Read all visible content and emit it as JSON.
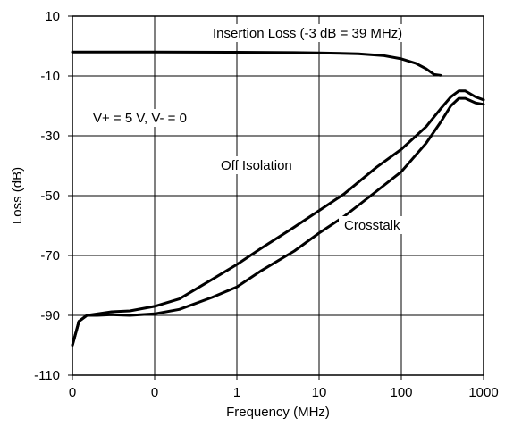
{
  "chart_data": {
    "type": "line",
    "title": "",
    "xlabel": "Frequency (MHz)",
    "ylabel": "Loss (dB)",
    "x_scale": "log",
    "x_ticks": [
      0.01,
      0.1,
      1,
      10,
      100,
      1000
    ],
    "x_tick_labels": [
      "0",
      "0",
      "1",
      "10",
      "100",
      "1000"
    ],
    "y_ticks": [
      10,
      -10,
      -30,
      -50,
      -70,
      -90,
      -110
    ],
    "y_tick_labels": [
      "10",
      "-10",
      "-30",
      "-50",
      "-70",
      "-90",
      "-110"
    ],
    "xlim": [
      0.01,
      1000
    ],
    "ylim": [
      -110,
      10
    ],
    "grid": true,
    "line_color": "#000000",
    "annotations": [
      {
        "text": "Insertion Loss (-3 dB = 39 MHz)",
        "series": "Insertion Loss"
      },
      {
        "text": "V+ = 5 V, V- = 0",
        "series": ""
      },
      {
        "text": "Off Isolation",
        "series": "Off Isolation"
      },
      {
        "text": "Crosstalk",
        "series": "Crosstalk"
      }
    ],
    "series": [
      {
        "name": "Insertion Loss",
        "x": [
          0.01,
          0.1,
          1,
          5,
          10,
          30,
          60,
          100,
          150,
          200,
          250,
          300
        ],
        "y": [
          -2,
          -2,
          -2.1,
          -2.2,
          -2.3,
          -2.6,
          -3.2,
          -4.3,
          -5.8,
          -7.6,
          -9.5,
          -9.8
        ]
      },
      {
        "name": "Off Isolation",
        "x": [
          0.01,
          0.012,
          0.015,
          0.02,
          0.03,
          0.05,
          0.1,
          0.2,
          0.5,
          1,
          2,
          5,
          10,
          20,
          50,
          100,
          200,
          300,
          400,
          500,
          600,
          800,
          1000
        ],
        "y": [
          -100,
          -92,
          -90,
          -89.5,
          -88.8,
          -88.5,
          -87,
          -84.5,
          -78,
          -73,
          -67.5,
          -60.5,
          -55,
          -49.5,
          -40.5,
          -34.5,
          -27,
          -21,
          -17,
          -15,
          -15,
          -17,
          -18
        ]
      },
      {
        "name": "Crosstalk",
        "x": [
          0.01,
          0.012,
          0.015,
          0.02,
          0.03,
          0.05,
          0.1,
          0.2,
          0.5,
          1,
          2,
          5,
          10,
          20,
          50,
          100,
          200,
          300,
          400,
          500,
          600,
          800,
          1000
        ],
        "y": [
          -100,
          -92,
          -90,
          -90,
          -89.8,
          -90,
          -89.5,
          -88,
          -84,
          -80.5,
          -75,
          -68.5,
          -62.5,
          -57,
          -48.5,
          -42,
          -32.5,
          -25.5,
          -20,
          -17.5,
          -17.5,
          -19,
          -19.5
        ]
      }
    ]
  }
}
